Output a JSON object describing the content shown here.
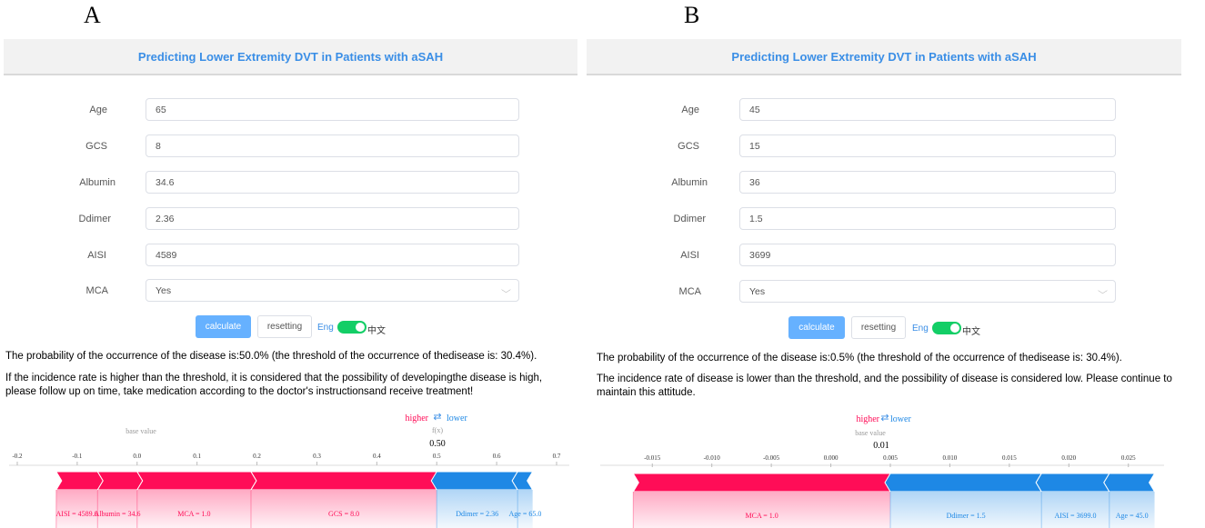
{
  "panels": {
    "a": {
      "letter": "A",
      "title": "Predicting Lower Extremity DVT in Patients with aSAH",
      "fields": [
        {
          "label": "Age",
          "value": "65"
        },
        {
          "label": "GCS",
          "value": "8"
        },
        {
          "label": "Albumin",
          "value": "34.6"
        },
        {
          "label": "Ddimer",
          "value": "2.36"
        },
        {
          "label": "AISI",
          "value": "4589"
        },
        {
          "label": "MCA",
          "value": "Yes"
        }
      ],
      "calculate_label": "calculate",
      "reset_label": "resetting",
      "lang_eng": "Eng",
      "lang_cn": "中文",
      "result": "The probability of the occurrence of the disease is:50.0% (the threshold of the occurrence of thedisease is: 30.4%).",
      "advice": "If the incidence rate is higher than the threshold, it is considered that the possibility of developingthe disease is high, please follow up on time, take medication according to the doctor's instructionsand receive treatment!",
      "chart_data": {
        "type": "force",
        "higher_label": "higher",
        "lower_label": "lower",
        "arrows_glyph": "⇄",
        "fx_label": "f(x)",
        "fx_value": "0.50",
        "base_value_label": "base value",
        "base_value": 0.0,
        "output_value": 0.5,
        "axis_min": -0.2,
        "axis_max": 0.7,
        "ticks": [
          "-0.2",
          "-0.1",
          "0.0",
          "0.1",
          "0.2",
          "0.3",
          "0.4",
          "0.5",
          "0.6",
          "0.7"
        ],
        "tick_values": [
          -0.2,
          -0.1,
          0.0,
          0.1,
          0.2,
          0.3,
          0.4,
          0.5,
          0.6,
          0.7
        ],
        "positive": [
          {
            "label": "AISI = 4589.0",
            "from": -0.066,
            "to": -0.135
          },
          {
            "label": "Albumin = 34.6",
            "from": 0.0,
            "to": -0.066
          },
          {
            "label": "MCA = 1.0",
            "from": 0.19,
            "to": 0.0
          },
          {
            "label": "GCS = 8.0",
            "from": 0.5,
            "to": 0.19
          }
        ],
        "negative": [
          {
            "label": "Ddimer = 2.36",
            "from": 0.5,
            "to": 0.635
          },
          {
            "label": "Age = 65.0",
            "from": 0.635,
            "to": 0.66
          }
        ],
        "colors": {
          "positive": "#ff0d57",
          "negative": "#1e88e5"
        }
      }
    },
    "b": {
      "letter": "B",
      "title": "Predicting Lower Extremity DVT in Patients with aSAH",
      "fields": [
        {
          "label": "Age",
          "value": "45"
        },
        {
          "label": "GCS",
          "value": "15"
        },
        {
          "label": "Albumin",
          "value": "36"
        },
        {
          "label": "Ddimer",
          "value": "1.5"
        },
        {
          "label": "AISI",
          "value": "3699"
        },
        {
          "label": "MCA",
          "value": "Yes"
        }
      ],
      "calculate_label": "calculate",
      "reset_label": "resetting",
      "lang_eng": "Eng",
      "lang_cn": "中文",
      "result": "The probability of the occurrence of the disease is:0.5% (the threshold of the occurrence of thedisease is: 30.4%).",
      "advice": "The incidence rate of disease is lower than the threshold, and the possibility of disease is considered low. Please continue to maintain this attitude.",
      "chart_data": {
        "type": "force",
        "higher_label": "higher",
        "lower_label": "lower",
        "arrows_glyph": "⇄",
        "fx_label": "f(x)",
        "fx_value": "0.01",
        "base_value_label": "base value",
        "output_value": 0.005,
        "axis_min": -0.018,
        "axis_max": 0.028,
        "ticks": [
          "-0.015",
          "-0.010",
          "-0.005",
          "0.000",
          "0.005",
          "0.010",
          "0.015",
          "0.020",
          "0.025"
        ],
        "tick_values": [
          -0.015,
          -0.01,
          -0.005,
          0.0,
          0.005,
          0.01,
          0.015,
          0.02,
          0.025
        ],
        "positive": [
          {
            "label": "MCA = 1.0",
            "from": 0.005,
            "to": -0.0166
          }
        ],
        "negative": [
          {
            "label": "Ddimer = 1.5",
            "from": 0.005,
            "to": 0.0177
          },
          {
            "label": "AISI = 3699.0",
            "from": 0.0177,
            "to": 0.0234
          },
          {
            "label": "Age = 45.0",
            "from": 0.0234,
            "to": 0.0272
          }
        ],
        "colors": {
          "positive": "#ff0d57",
          "negative": "#1e88e5"
        }
      }
    }
  }
}
